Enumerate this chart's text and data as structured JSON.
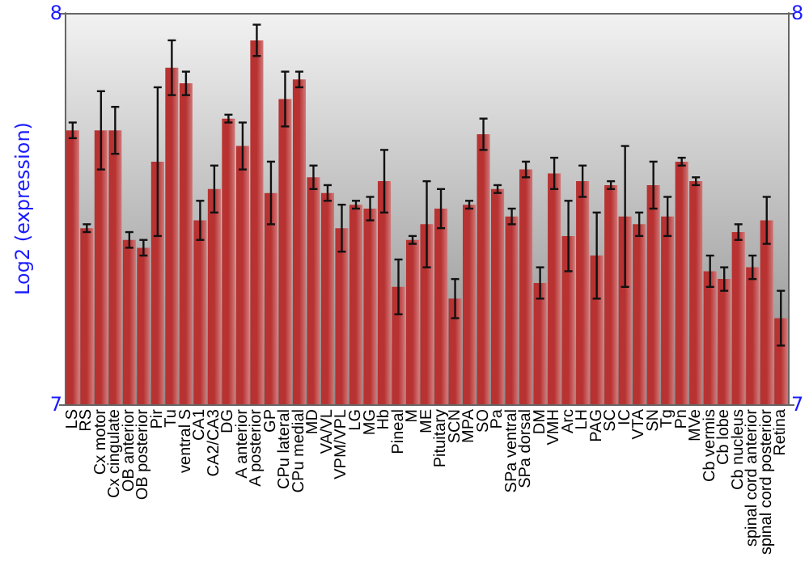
{
  "chart_data": {
    "type": "bar",
    "ylabel": "Log2 (expression)",
    "categories": [
      "LS",
      "RS",
      "Cx motor",
      "Cx cingulate",
      "OB anterior",
      "OB posterior",
      "Pir",
      "Tu",
      "ventral S",
      "CA1",
      "CA2/CA3",
      "DG",
      "A anterior",
      "A posterior",
      "GP",
      "CPu lateral",
      "CPu medial",
      "MD",
      "VA/VL",
      "VPM/VPL",
      "LG",
      "MG",
      "Hb",
      "Pineal",
      "M",
      "ME",
      "Pituitary",
      "SCN",
      "MPA",
      "SO",
      "Pa",
      "SPa ventral",
      "SPa dorsal",
      "DM",
      "VMH",
      "Arc",
      "LH",
      "PAG",
      "SC",
      "IC",
      "VTA",
      "SN",
      "Tg",
      "Pn",
      "MVe",
      "Cb vermis",
      "Cb lobe",
      "Cb nucleus",
      "spinal cord anterior",
      "spinal cord posterior",
      "Retina"
    ],
    "values": [
      7.7,
      7.45,
      7.7,
      7.7,
      7.42,
      7.4,
      7.62,
      7.86,
      7.82,
      7.47,
      7.55,
      7.73,
      7.66,
      7.93,
      7.54,
      7.78,
      7.83,
      7.58,
      7.54,
      7.45,
      7.51,
      7.5,
      7.57,
      7.3,
      7.42,
      7.46,
      7.5,
      7.27,
      7.51,
      7.69,
      7.55,
      7.48,
      7.6,
      7.31,
      7.59,
      7.43,
      7.57,
      7.38,
      7.56,
      7.48,
      7.46,
      7.56,
      7.48,
      7.62,
      7.57,
      7.34,
      7.32,
      7.44,
      7.35,
      7.47,
      7.22
    ],
    "errors": [
      0.02,
      0.01,
      0.1,
      0.06,
      0.02,
      0.02,
      0.19,
      0.07,
      0.03,
      0.05,
      0.06,
      0.01,
      0.06,
      0.04,
      0.08,
      0.07,
      0.02,
      0.03,
      0.02,
      0.06,
      0.01,
      0.03,
      0.08,
      0.07,
      0.01,
      0.11,
      0.05,
      0.05,
      0.01,
      0.04,
      0.01,
      0.02,
      0.02,
      0.04,
      0.04,
      0.09,
      0.04,
      0.11,
      0.01,
      0.18,
      0.03,
      0.06,
      0.05,
      0.01,
      0.01,
      0.04,
      0.03,
      0.02,
      0.03,
      0.06,
      0.07
    ],
    "color": "#b83232",
    "ylim": [
      7,
      8
    ],
    "yticks": [
      7,
      8
    ],
    "y2lim": [
      7,
      8
    ],
    "y2ticks": [
      7,
      8
    ]
  }
}
